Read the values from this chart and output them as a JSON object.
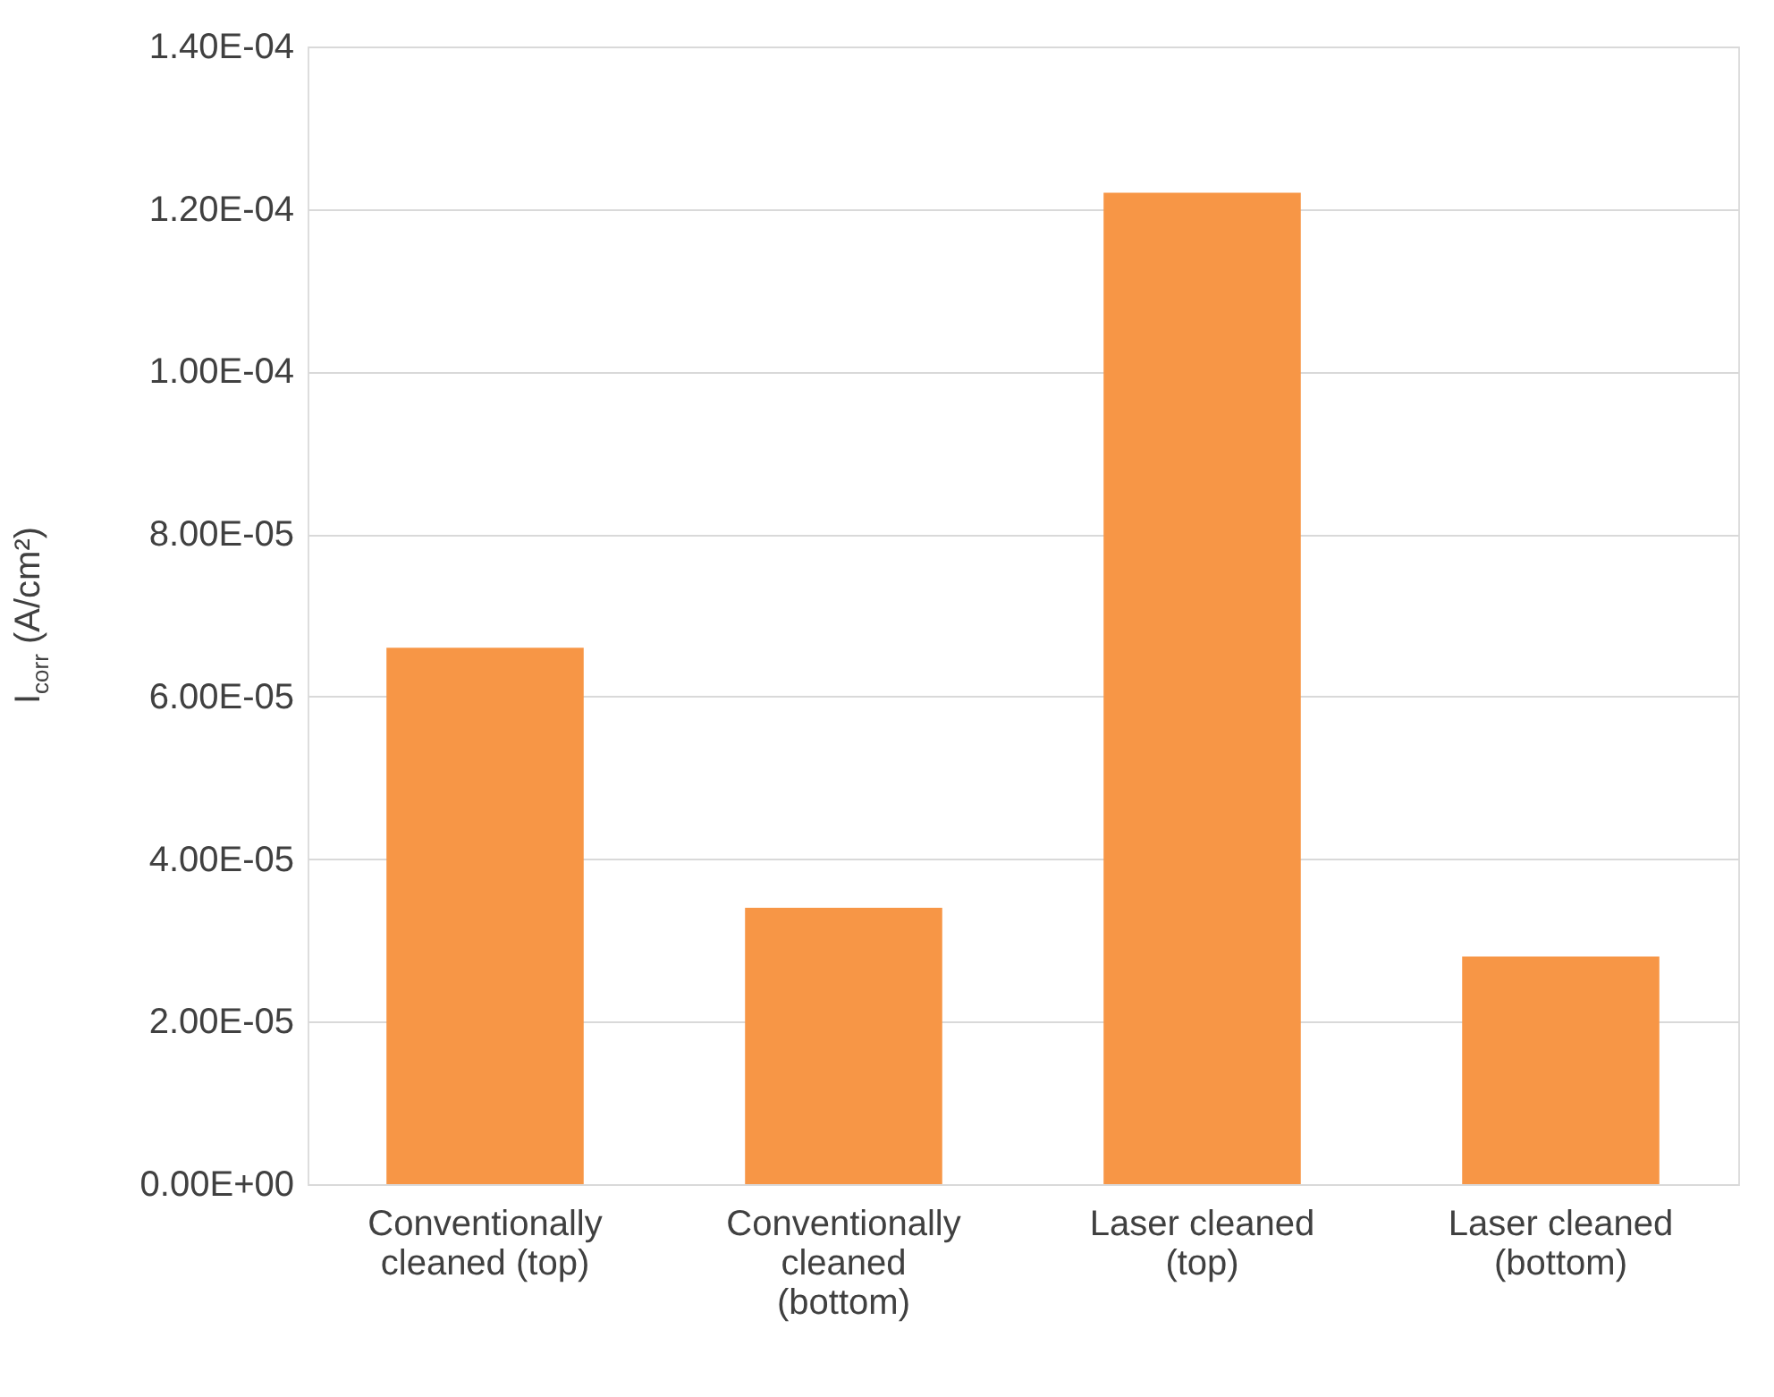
{
  "chart_data": {
    "type": "bar",
    "ylabel": "I$_{corr}$ (A/cm²)",
    "categories": [
      "Conventionally cleaned (top)",
      "Conventionally cleaned (bottom)",
      "Laser cleaned (top)",
      "Laser cleaned (bottom)"
    ],
    "values": [
      6.6e-05,
      3.4e-05,
      0.000122,
      2.8e-05
    ],
    "color": "#f79646",
    "ylim": [
      0,
      0.00014
    ],
    "yticks": [
      {
        "value": 0,
        "label": "0.00E+00"
      },
      {
        "value": 2e-05,
        "label": "2.00E-05"
      },
      {
        "value": 4e-05,
        "label": "4.00E-05"
      },
      {
        "value": 6e-05,
        "label": "6.00E-05"
      },
      {
        "value": 8e-05,
        "label": "8.00E-05"
      },
      {
        "value": 0.0001,
        "label": "1.00E-04"
      },
      {
        "value": 0.00012,
        "label": "1.20E-04"
      },
      {
        "value": 0.00014,
        "label": "1.40E-04"
      }
    ],
    "grid": "y"
  }
}
